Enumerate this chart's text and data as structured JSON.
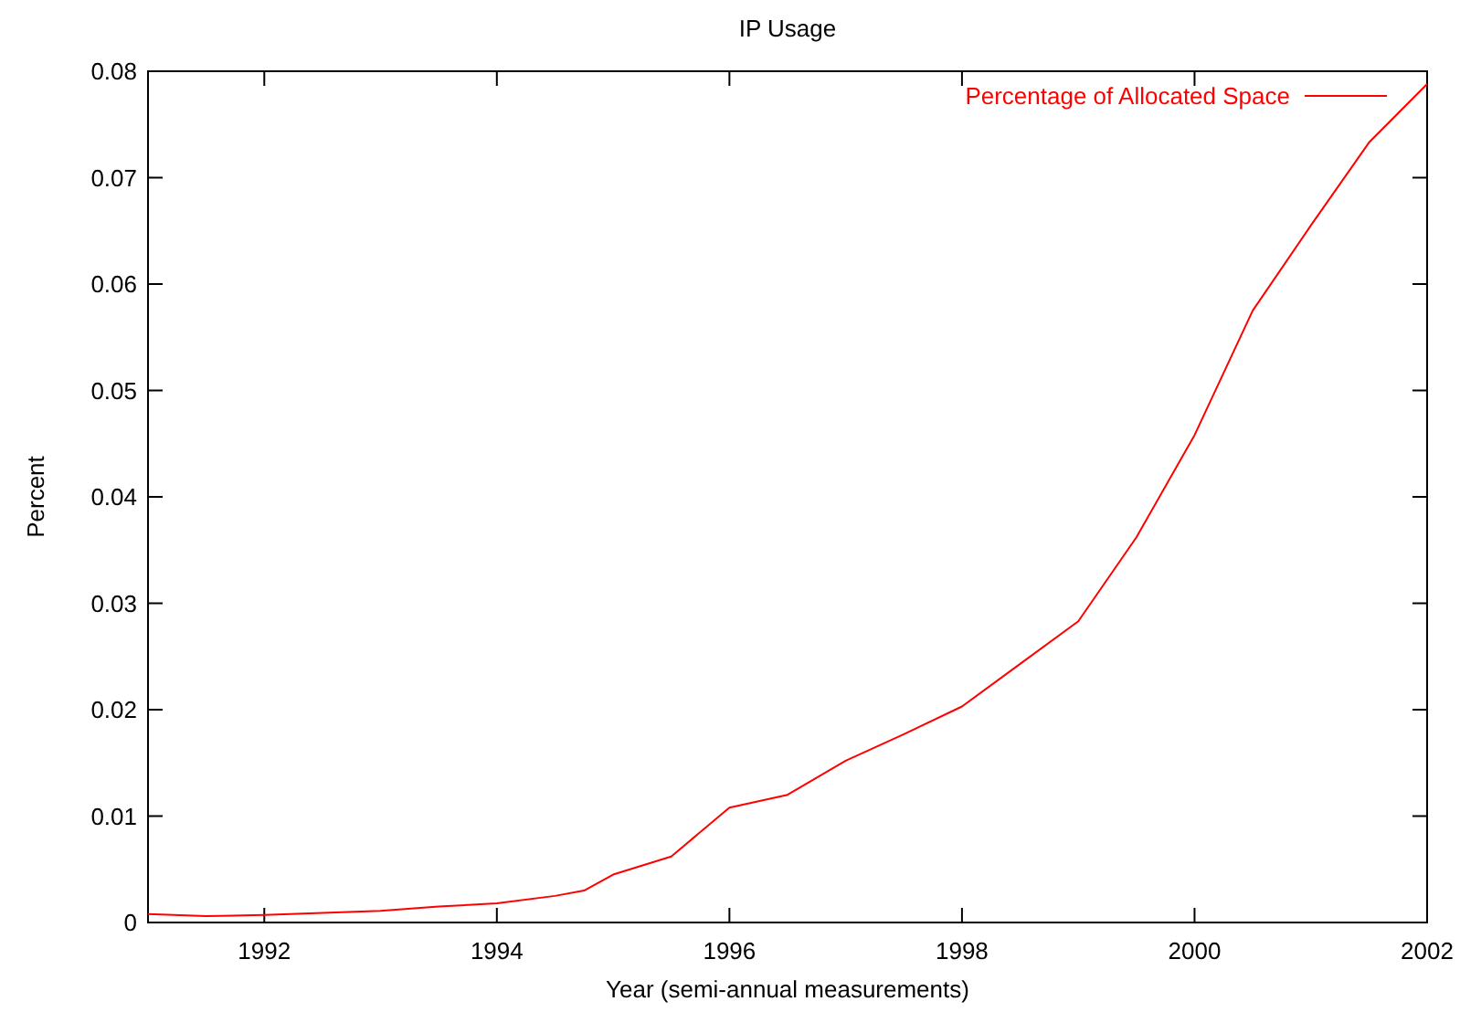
{
  "chart_data": {
    "type": "line",
    "title": "IP Usage",
    "xlabel": "Year (semi-annual measurements)",
    "ylabel": "Percent",
    "x": [
      1991,
      1991.5,
      1992,
      1992.5,
      1993,
      1993.5,
      1994,
      1994.5,
      1994.75,
      1995,
      1995.5,
      1996,
      1996.5,
      1997,
      1997.5,
      1998,
      1998.5,
      1999,
      1999.5,
      2000,
      2000.5,
      2001,
      2001.5,
      2002
    ],
    "series": [
      {
        "name": "Percentage of Allocated Space",
        "color": "#ff0000",
        "values": [
          0.0008,
          0.0006,
          0.0007,
          0.0009,
          0.0011,
          0.0015,
          0.0018,
          0.0025,
          0.003,
          0.0045,
          0.0062,
          0.0108,
          0.012,
          0.0152,
          0.0177,
          0.0203,
          0.0243,
          0.0283,
          0.0362,
          0.0458,
          0.0575,
          0.0655,
          0.0733,
          0.0788
        ]
      }
    ],
    "xlim": [
      1991,
      2002
    ],
    "xticks": [
      1992,
      1994,
      1996,
      1998,
      2000,
      2002
    ],
    "ylim": [
      0,
      0.08
    ],
    "yticks": [
      0,
      0.01,
      0.02,
      0.03,
      0.04,
      0.05,
      0.06,
      0.07,
      0.08
    ],
    "grid": false,
    "legend": "top right",
    "marker": "none",
    "line_style": "solid"
  }
}
